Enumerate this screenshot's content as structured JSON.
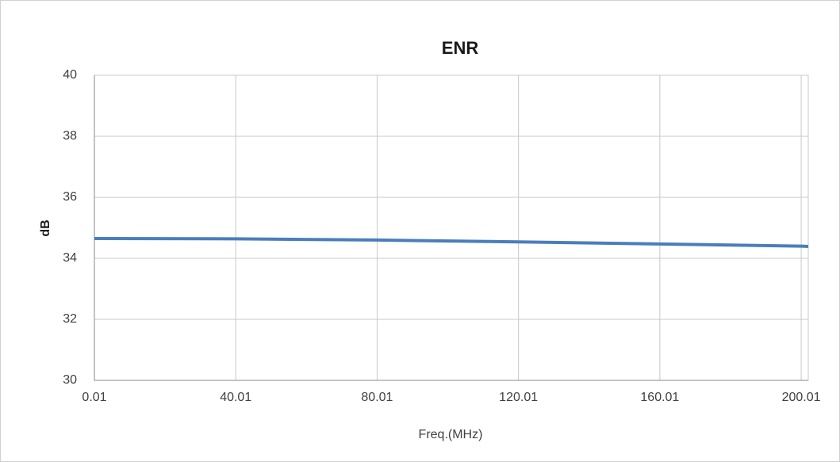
{
  "chart_data": {
    "type": "line",
    "title": "ENR",
    "x_label": "Freq.(MHz)",
    "y_label": "dB",
    "x": [
      0.01,
      40.01,
      80.01,
      120.01,
      160.01,
      200.01,
      202.01
    ],
    "series": [
      {
        "name": "ENR",
        "color": "#4a7ebb",
        "values": [
          34.65,
          34.64,
          34.6,
          34.54,
          34.47,
          34.4,
          34.39
        ]
      }
    ],
    "xlim": [
      0.01,
      202.01
    ],
    "xticks": [
      0.01,
      40.01,
      80.01,
      120.01,
      160.01,
      200.01
    ],
    "ylim": [
      30,
      40
    ],
    "yticks": [
      30,
      32,
      34,
      36,
      38,
      40
    ],
    "grid": true
  }
}
